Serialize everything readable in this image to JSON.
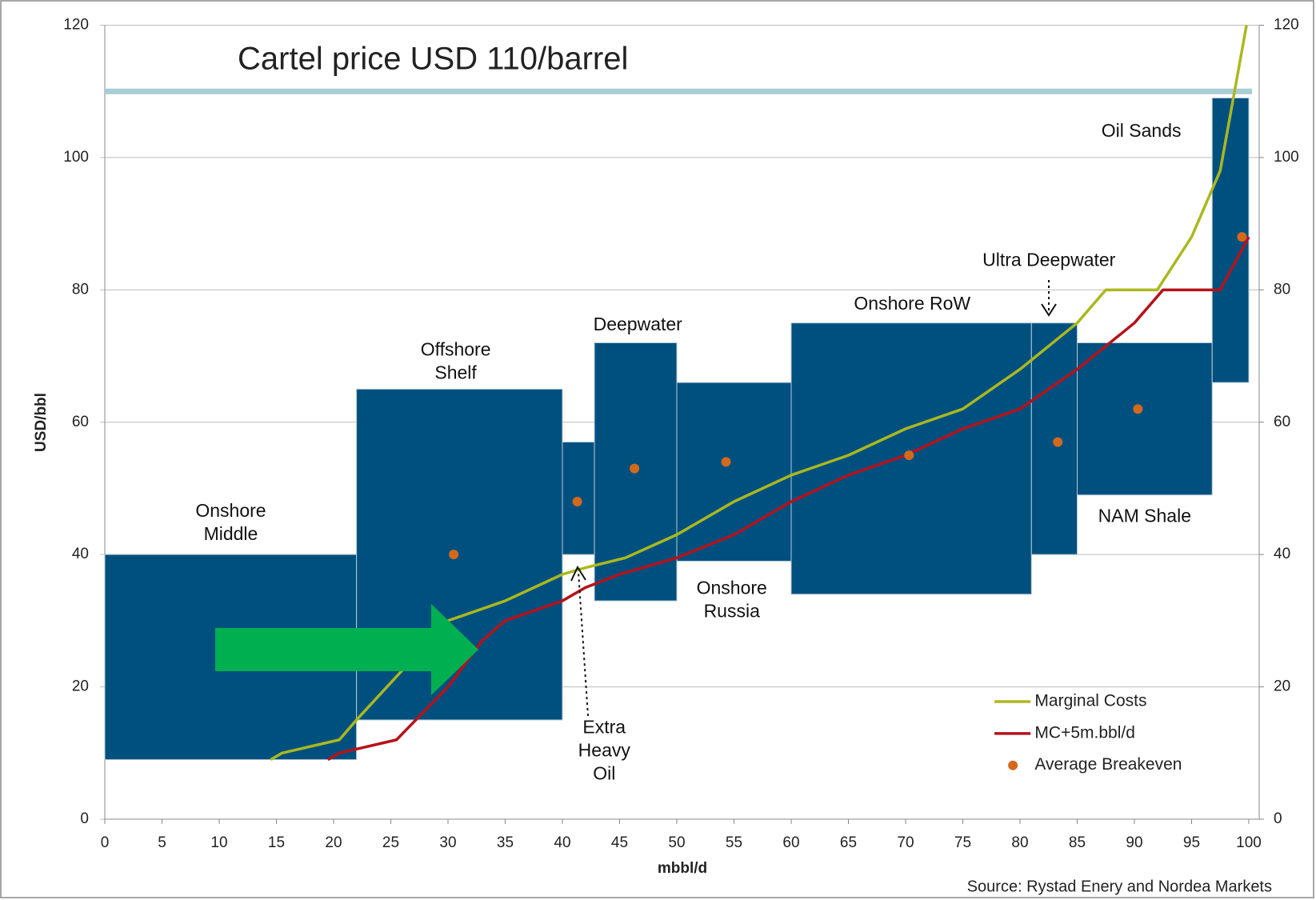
{
  "chart_data": {
    "type": "cost-curve",
    "title": "Cartel price USD 110/barrel",
    "price_line": 110,
    "price_color": "#a9cdd6",
    "xlabel": "mbbl/d",
    "ylabel": "USD/bbl",
    "source": "Source: Rystad Enery and Nordea Markets",
    "xlim": [
      0,
      100
    ],
    "xticks": [
      0,
      5,
      10,
      15,
      20,
      25,
      30,
      35,
      40,
      45,
      50,
      55,
      60,
      65,
      70,
      75,
      80,
      85,
      90,
      95,
      100
    ],
    "ylim": [
      0,
      120
    ],
    "yticks": [
      0,
      20,
      40,
      60,
      80,
      100,
      120
    ],
    "y2lim": [
      0,
      120
    ],
    "y2ticks": [
      0,
      20,
      40,
      60,
      80,
      100,
      120
    ],
    "grid": true,
    "box_color": "#00507f",
    "ranges": [
      {
        "label": [
          "Onshore",
          "Middle"
        ],
        "x": [
          0,
          22
        ],
        "low": 9,
        "high": 40
      },
      {
        "label": [
          "Offshore",
          "Shelf"
        ],
        "x": [
          22,
          40
        ],
        "low": 15,
        "high": 65
      },
      {
        "label": [
          "Extra",
          "Heavy",
          "Oil"
        ],
        "x": [
          40,
          42.8
        ],
        "low": 40,
        "high": 57
      },
      {
        "label": [
          "Deepwater"
        ],
        "x": [
          42.8,
          50
        ],
        "low": 33,
        "high": 72
      },
      {
        "label": [
          "Onshore",
          "Russia"
        ],
        "x": [
          50,
          60
        ],
        "low": 39,
        "high": 66
      },
      {
        "label": [
          "Onshore RoW"
        ],
        "x": [
          60,
          81
        ],
        "low": 34,
        "high": 75
      },
      {
        "label": [
          "Ultra Deepwater"
        ],
        "x": [
          81,
          85
        ],
        "low": 40,
        "high": 75
      },
      {
        "label": [
          "NAM Shale"
        ],
        "x": [
          85,
          96.8
        ],
        "low": 49,
        "high": 72
      },
      {
        "label": [
          "Oil Sands"
        ],
        "x": [
          96.8,
          100
        ],
        "low": 66,
        "high": 109
      }
    ],
    "series": [
      {
        "name": "Marginal Costs",
        "kind": "line",
        "color": "#aab81e",
        "x": [
          14.5,
          15.5,
          20.5,
          22,
          30,
          35,
          40,
          42,
          45.5,
          50,
          55,
          60,
          65,
          70,
          75,
          80,
          85,
          87.5,
          92,
          95,
          97.5,
          99.8
        ],
        "values": [
          9,
          10,
          12,
          15,
          30,
          33,
          37,
          38,
          39.5,
          43,
          48,
          52,
          55,
          59,
          62,
          68,
          75,
          80,
          80,
          88,
          98,
          120
        ]
      },
      {
        "name": "MC+5m.bbl/d",
        "kind": "line",
        "color": "#b5121b",
        "x": [
          19.5,
          20.5,
          25.5,
          30,
          33,
          35,
          40,
          42,
          45,
          50,
          55,
          60,
          65,
          70,
          75,
          80,
          85,
          90,
          92.5,
          97.5,
          100
        ],
        "values": [
          9,
          10,
          12,
          20,
          27,
          30,
          33,
          35,
          37,
          39.5,
          43,
          48,
          52,
          55,
          59,
          62,
          68,
          75,
          80,
          80,
          88
        ]
      },
      {
        "name": "Average Breakeven",
        "kind": "dots",
        "color": "#d4691c",
        "x": [
          30.5,
          41.3,
          46.3,
          54.3,
          70.3,
          83.3,
          90.3,
          99.4
        ],
        "values": [
          40,
          48,
          53,
          54,
          55,
          57,
          62,
          88
        ]
      }
    ]
  }
}
